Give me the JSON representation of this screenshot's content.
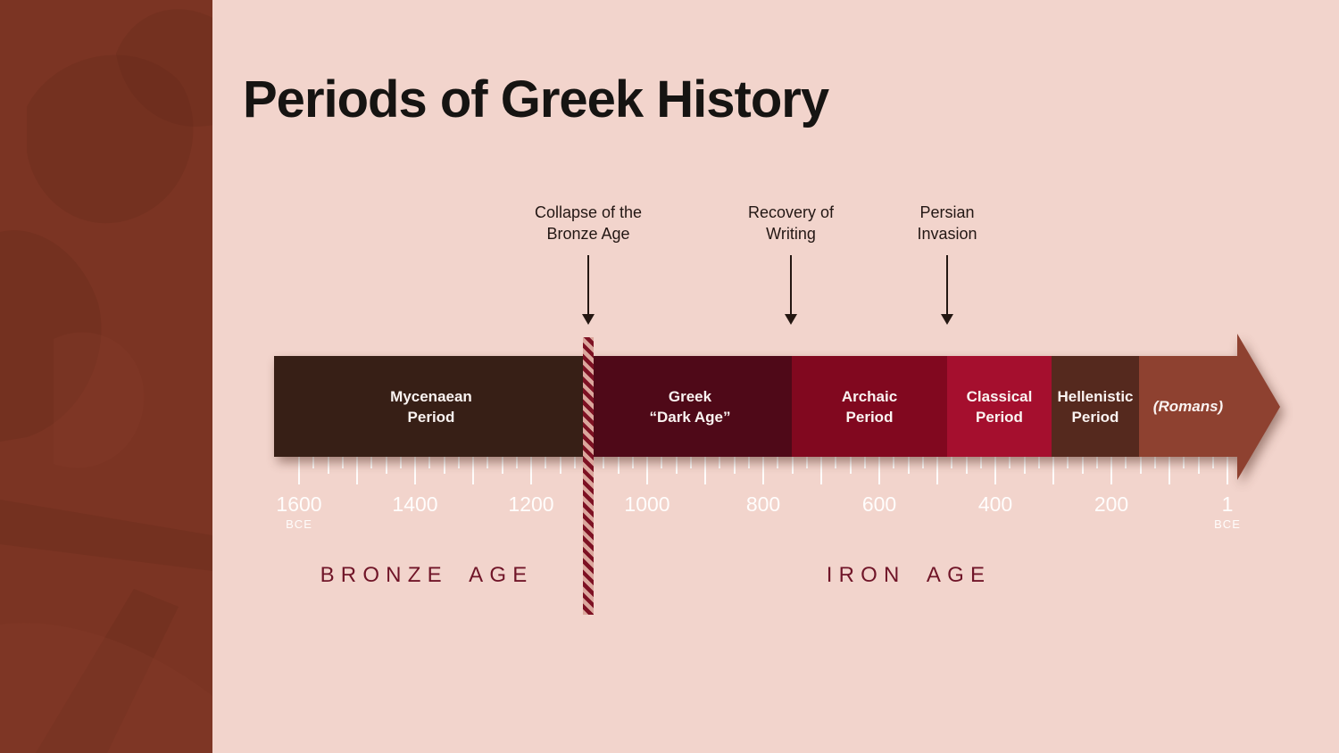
{
  "slide": {
    "title": "Periods of Greek History"
  },
  "colors": {
    "bg": "#f2d4cc",
    "sidebar": "#7b3423",
    "title": "#161412",
    "annotation_text": "#231714",
    "arrow": "#241712",
    "tick": "#ffffff",
    "tick_label": "#fffdfc",
    "age_label": "#701528",
    "stripe_dark": "#7d1123",
    "stripe_light": "#dba79d",
    "romans_color": "#8e4130"
  },
  "annotations": [
    {
      "lines": [
        "Collapse of the",
        "Bronze Age"
      ]
    },
    {
      "lines": [
        "Recovery of",
        "Writing"
      ]
    },
    {
      "lines": [
        "Persian",
        "Invasion"
      ]
    }
  ],
  "timeline": {
    "segments": [
      {
        "name": "Mycenaean Period",
        "label_lines": [
          "Mycenaean",
          "Period"
        ],
        "color": "#371f16"
      },
      {
        "name": "Greek Dark Age",
        "label_lines": [
          "Greek",
          "“Dark Age”"
        ],
        "color": "#4f0918"
      },
      {
        "name": "Archaic Period",
        "label_lines": [
          "Archaic",
          "Period"
        ],
        "color": "#81081f"
      },
      {
        "name": "Classical Period",
        "label_lines": [
          "Classical",
          "Period"
        ],
        "color": "#a50f2e"
      },
      {
        "name": "Hellenistic Period",
        "label_lines": [
          "Hellenistic",
          "Period"
        ],
        "color": "#55291e"
      },
      {
        "name": "Romans",
        "label_lines": [
          "(Romans)"
        ],
        "color": "#8e4130"
      }
    ],
    "axis": {
      "tick_labels": [
        {
          "text": "1600",
          "sub": "BCE"
        },
        {
          "text": "1400"
        },
        {
          "text": "1200"
        },
        {
          "text": "1000"
        },
        {
          "text": "800"
        },
        {
          "text": "600"
        },
        {
          "text": "400"
        },
        {
          "text": "200"
        },
        {
          "text": "1",
          "sub": "BCE"
        }
      ]
    }
  },
  "ages": [
    {
      "label": "BRONZE AGE"
    },
    {
      "label": "IRON AGE"
    }
  ]
}
